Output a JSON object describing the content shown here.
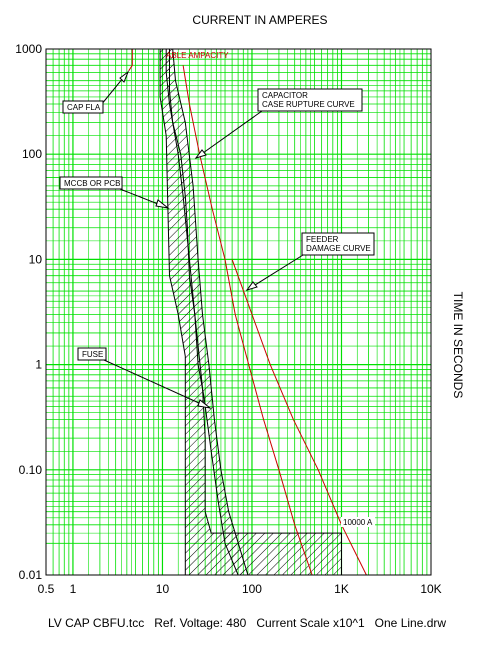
{
  "chart_data": {
    "type": "line",
    "title": "CURRENT IN AMPERES",
    "ylabel": "TIME IN SECONDS",
    "footer": "LV CAP CBFU.tcc   Ref. Voltage: 480   Current Scale x10^1   One Line.drw",
    "x_scale": "log",
    "y_scale": "log",
    "xlim": [
      0.5,
      10000
    ],
    "ylim": [
      0.01,
      1000
    ],
    "x_ticks": [
      {
        "value": 0.5,
        "label": "0.5"
      },
      {
        "value": 1,
        "label": "1"
      },
      {
        "value": 10,
        "label": "10"
      },
      {
        "value": 100,
        "label": "100"
      },
      {
        "value": 1000,
        "label": "1K"
      },
      {
        "value": 10000,
        "label": "10K"
      }
    ],
    "y_ticks": [
      {
        "value": 1000,
        "label": "1000"
      },
      {
        "value": 100,
        "label": "100"
      },
      {
        "value": 10,
        "label": "10"
      },
      {
        "value": 1,
        "label": "1"
      },
      {
        "value": 0.1,
        "label": "0.10"
      },
      {
        "value": 0.01,
        "label": "0.01"
      }
    ],
    "grid": true,
    "grid_color": "#00e000",
    "series": [
      {
        "key": "cap_fla",
        "style": "line",
        "color": "#cc0000",
        "points": [
          [
            4.6,
            1000
          ],
          [
            4.6,
            700
          ],
          [
            4.2,
            620
          ]
        ]
      },
      {
        "key": "cable_ampacity",
        "style": "line",
        "color": "#cc0000",
        "points": [
          [
            17,
            700
          ],
          [
            20,
            300
          ],
          [
            26,
            100
          ],
          [
            36,
            30
          ],
          [
            50,
            10
          ],
          [
            65,
            3
          ],
          [
            92,
            1
          ],
          [
            135,
            0.3
          ],
          [
            200,
            0.1
          ],
          [
            300,
            0.03
          ],
          [
            470,
            0.01
          ]
        ]
      },
      {
        "key": "feeder_damage",
        "style": "line",
        "color": "#cc0000",
        "points": [
          [
            60,
            10
          ],
          [
            100,
            3
          ],
          [
            160,
            1
          ],
          [
            290,
            0.3
          ],
          [
            550,
            0.1
          ],
          [
            1000,
            0.03
          ],
          [
            1900,
            0.01
          ]
        ]
      },
      {
        "key": "mccb",
        "style": "band",
        "color": "#000000",
        "polygon": [
          [
            9.4,
            1000
          ],
          [
            12,
            1000
          ],
          [
            12,
            400
          ],
          [
            13,
            200
          ],
          [
            16,
            100
          ],
          [
            18,
            40
          ],
          [
            19,
            20
          ],
          [
            20,
            7
          ],
          [
            23,
            3
          ],
          [
            28,
            0.6
          ],
          [
            30,
            0.2
          ],
          [
            30,
            0.04
          ],
          [
            35,
            0.025
          ],
          [
            1000,
            0.025
          ],
          [
            1000,
            0.01
          ],
          [
            18,
            0.01
          ],
          [
            18,
            1.2
          ],
          [
            15,
            3
          ],
          [
            12,
            7
          ],
          [
            11.5,
            30
          ],
          [
            11,
            150
          ],
          [
            9.4,
            350
          ]
        ]
      },
      {
        "key": "fuse",
        "style": "band",
        "color": "#000000",
        "polygon": [
          [
            11,
            1000
          ],
          [
            13,
            1000
          ],
          [
            14,
            500
          ],
          [
            18,
            200
          ],
          [
            22,
            50
          ],
          [
            25,
            10
          ],
          [
            28,
            3
          ],
          [
            33,
            1
          ],
          [
            38,
            0.3
          ],
          [
            45,
            0.1
          ],
          [
            55,
            0.04
          ],
          [
            90,
            0.01
          ],
          [
            70,
            0.01
          ],
          [
            50,
            0.02
          ],
          [
            42,
            0.05
          ],
          [
            35,
            0.15
          ],
          [
            29,
            0.5
          ],
          [
            25,
            1
          ],
          [
            23,
            3
          ],
          [
            20,
            10
          ],
          [
            17,
            40
          ],
          [
            15,
            100
          ],
          [
            12,
            300
          ],
          [
            11,
            600
          ]
        ]
      }
    ],
    "annotations": [
      {
        "key": "cap_fla",
        "text": "CAP FLA"
      },
      {
        "key": "cable_ampacity",
        "text": "ABLE AMPACITY"
      },
      {
        "key": "capacitor",
        "lines": [
          "CAPACITOR",
          "CASE RUPTURE CURVE"
        ]
      },
      {
        "key": "mccb",
        "text": "MCCB OR PCB"
      },
      {
        "key": "feeder",
        "lines": [
          "FEEDER",
          "DAMAGE CURVE"
        ]
      },
      {
        "key": "fuse",
        "text": "FUSE"
      },
      {
        "key": "fault_current",
        "text": "10000 A"
      }
    ]
  }
}
